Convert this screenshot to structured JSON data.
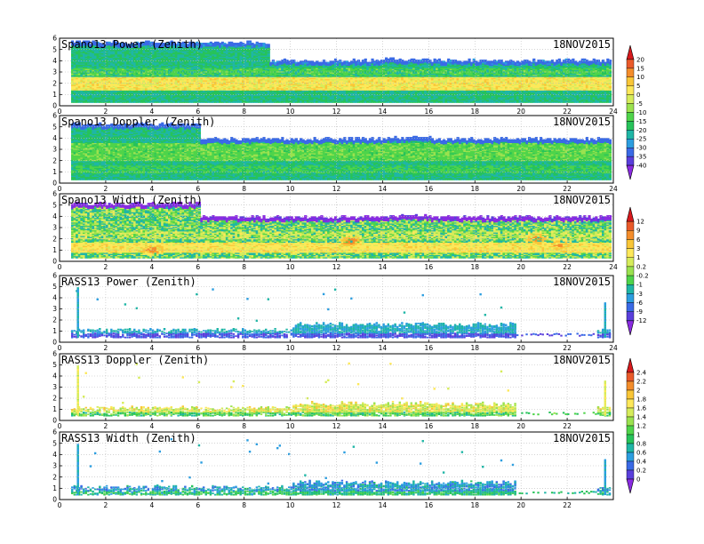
{
  "chart_data": [
    {
      "type": "heatmap",
      "title": "Spano13 Power (Zenith)",
      "date": "18NOV2015",
      "x_ticks": [
        "0",
        "2",
        "4",
        "6",
        "8",
        "10",
        "12",
        "14",
        "16",
        "18",
        "20",
        "22",
        "24"
      ],
      "y_ticks": [
        "0",
        "1",
        "2",
        "3",
        "4",
        "5",
        "6"
      ],
      "xlim": [
        0,
        24
      ],
      "ylim": [
        0,
        6
      ],
      "grid": true,
      "colorbar_group": "power_doppler",
      "field": {
        "kind": "profiler",
        "top_start": 5.6,
        "top_end": 4.0,
        "cut_x": 9.0,
        "base_value": -20,
        "band_center": 2.0,
        "band_width": 0.6,
        "band_value": 2,
        "secondary_center": 3.0,
        "secondary_value": -12,
        "noise": 5
      }
    },
    {
      "type": "heatmap",
      "title": "Spano13 Doppler (Zenith)",
      "date": "18NOV2015",
      "x_ticks": [
        "0",
        "2",
        "4",
        "6",
        "8",
        "10",
        "12",
        "14",
        "16",
        "18",
        "20",
        "22",
        "24"
      ],
      "y_ticks": [
        "0",
        "1",
        "2",
        "3",
        "4",
        "5",
        "6"
      ],
      "xlim": [
        0,
        24
      ],
      "ylim": [
        0,
        6
      ],
      "grid": true,
      "colorbar_group": "power_doppler",
      "field": {
        "kind": "profiler",
        "top_start": 5.2,
        "top_end": 3.9,
        "cut_x": 6.0,
        "base_value": -20,
        "band_center": 2.8,
        "band_width": 0.8,
        "band_value": -12,
        "secondary_center": 1.2,
        "secondary_value": -14,
        "noise": 4
      }
    },
    {
      "type": "heatmap",
      "title": "Spano13 Width (Zenith)",
      "date": "18NOV2015",
      "x_ticks": [
        "0",
        "2",
        "4",
        "6",
        "8",
        "10",
        "12",
        "14",
        "16",
        "18",
        "20",
        "22",
        "24"
      ],
      "y_ticks": [
        "0",
        "1",
        "2",
        "3",
        "4",
        "5",
        "6"
      ],
      "xlim": [
        0,
        24
      ],
      "ylim": [
        0,
        6
      ],
      "grid": true,
      "colorbar_group": "width_power",
      "field": {
        "kind": "profiler",
        "top_start": 5.1,
        "top_end": 3.9,
        "cut_x": 6.0,
        "base_value": -0.5,
        "band_center": 1.2,
        "band_width": 0.5,
        "band_value": 2,
        "secondary_center": 2.3,
        "secondary_value": 0.5,
        "noise": 1.6,
        "hotspots": [
          [
            4.0,
            1.0,
            9
          ],
          [
            12.6,
            1.8,
            10
          ],
          [
            20.6,
            2.0,
            10
          ],
          [
            21.6,
            1.5,
            8
          ]
        ]
      }
    },
    {
      "type": "heatmap",
      "title": "RASS13 Power (Zenith)",
      "date": "18NOV2015",
      "x_ticks": [
        "0",
        "2",
        "4",
        "6",
        "8",
        "10",
        "12",
        "14",
        "16",
        "18",
        "20",
        "22",
        "24"
      ],
      "y_ticks": [
        "0",
        "1",
        "2",
        "3",
        "4",
        "5",
        "6"
      ],
      "xlim": [
        0,
        24
      ],
      "ylim": [
        0,
        6
      ],
      "grid": true,
      "colorbar_group": "width_power",
      "field": {
        "kind": "rass",
        "layer_center": 0.75,
        "layer_value": -9,
        "alt_value": -3,
        "noise": 2.0,
        "columns_start": 10.0,
        "columns_end": 19.8,
        "columns_top": 1.6
      }
    },
    {
      "type": "heatmap",
      "title": "RASS13 Doppler (Zenith)",
      "date": "18NOV2015",
      "x_ticks": [
        "0",
        "2",
        "4",
        "6",
        "8",
        "10",
        "12",
        "14",
        "16",
        "18",
        "20",
        "22"
      ],
      "y_ticks": [
        "0",
        "1",
        "2",
        "3",
        "4",
        "5",
        "6"
      ],
      "xlim": [
        0,
        24
      ],
      "ylim": [
        0,
        6
      ],
      "grid": true,
      "colorbar_group": "rass_doppler_width",
      "field": {
        "kind": "rass",
        "layer_center": 0.7,
        "layer_value": 1.05,
        "alt_value": 1.55,
        "noise": 0.35,
        "columns_start": 10.0,
        "columns_end": 19.8,
        "columns_top": 1.5
      }
    },
    {
      "type": "heatmap",
      "title": "RASS13 Width (Zenith)",
      "date": "18NOV2015",
      "x_ticks": [
        "0",
        "2",
        "4",
        "6",
        "8",
        "10",
        "12",
        "14",
        "16",
        "18",
        "20",
        "22"
      ],
      "y_ticks": [
        "0",
        "1",
        "2",
        "3",
        "4",
        "5",
        "6"
      ],
      "xlim": [
        0,
        24
      ],
      "ylim": [
        0,
        6
      ],
      "grid": true,
      "colorbar_group": "rass_doppler_width",
      "field": {
        "kind": "rass",
        "layer_center": 0.7,
        "layer_value": 0.85,
        "alt_value": 0.55,
        "noise": 0.3,
        "columns_start": 10.0,
        "columns_end": 19.8,
        "columns_top": 1.5
      }
    }
  ],
  "colorbars": [
    {
      "id": "power_doppler",
      "labels": [
        "20",
        "15",
        "10",
        "5",
        "0",
        "-5",
        "-10",
        "-15",
        "-20",
        "-25",
        "-30",
        "-35",
        "-40"
      ],
      "values": [
        20,
        15,
        10,
        5,
        0,
        -5,
        -10,
        -15,
        -20,
        -25,
        -30,
        -35,
        -40
      ],
      "colors": [
        "#d7191c",
        "#ea5a2a",
        "#f48d2b",
        "#f9c637",
        "#fde85a",
        "#d6ec5b",
        "#9be24f",
        "#4fd44a",
        "#27c35a",
        "#1fb6a6",
        "#2c9ee0",
        "#3a6ae6",
        "#5a3fdc",
        "#8a2be2"
      ]
    },
    {
      "id": "width_power",
      "labels": [
        "12",
        "9",
        "6",
        "3",
        "1",
        "0.2",
        "-0.2",
        "-1",
        "-3",
        "-6",
        "-9",
        "-12"
      ],
      "values": [
        12,
        9,
        6,
        3,
        1,
        0.2,
        -0.2,
        -1,
        -3,
        -6,
        -9,
        -12
      ],
      "colors": [
        "#d7191c",
        "#ea5a2a",
        "#f48d2b",
        "#f9c637",
        "#fde85a",
        "#d6ec5b",
        "#9be24f",
        "#4fd44a",
        "#1fb6a6",
        "#2c9ee0",
        "#3a6ae6",
        "#5a3fdc",
        "#8a2be2"
      ]
    },
    {
      "id": "rass_doppler_width",
      "labels": [
        "2.4",
        "2.2",
        "2",
        "1.8",
        "1.6",
        "1.4",
        "1.2",
        "1",
        "0.8",
        "0.6",
        "0.4",
        "0.2",
        "0"
      ],
      "values": [
        2.4,
        2.2,
        2,
        1.8,
        1.6,
        1.4,
        1.2,
        1,
        0.8,
        0.6,
        0.4,
        0.2,
        0
      ],
      "colors": [
        "#d7191c",
        "#ea5a2a",
        "#f48d2b",
        "#f9c637",
        "#fde85a",
        "#d6ec5b",
        "#9be24f",
        "#4fd44a",
        "#27c35a",
        "#1fb6a6",
        "#2c9ee0",
        "#3a6ae6",
        "#5a3fdc",
        "#8a2be2"
      ]
    }
  ]
}
